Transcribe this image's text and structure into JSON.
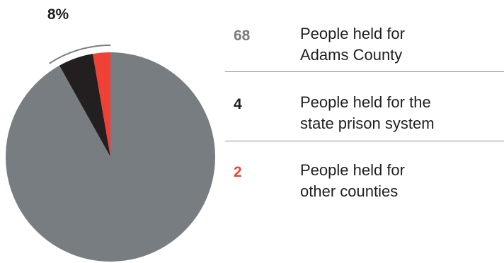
{
  "chart_data": {
    "type": "pie",
    "callout_label": "8%",
    "slices": [
      {
        "value": 68,
        "label": "People held for Adams County",
        "color": "#787d82"
      },
      {
        "value": 4,
        "label": "People held for the state prison system",
        "color": "#231f20"
      },
      {
        "value": 2,
        "label": "People held for other counties",
        "color": "#ef4135"
      }
    ]
  },
  "legend": {
    "rows": [
      {
        "value": "68",
        "line1": "People held for",
        "line2": "Adams County",
        "color": "#787d82"
      },
      {
        "value": "4",
        "line1": "People held for the",
        "line2": "state prison system",
        "color": "#231f20"
      },
      {
        "value": "2",
        "line1": "People held for",
        "line2": "other counties",
        "color": "#ef4135"
      }
    ]
  }
}
